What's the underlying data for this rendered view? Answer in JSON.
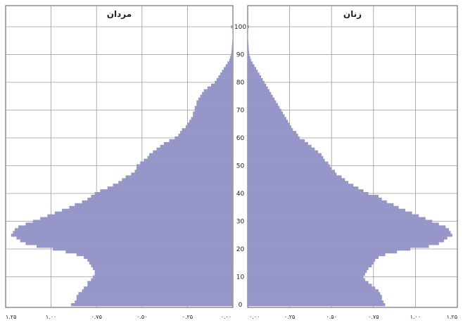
{
  "chart_data": {
    "type": "bar",
    "orientation": "horizontal",
    "subtype": "population-pyramid",
    "panels": [
      {
        "name": "مردان",
        "side": "left"
      },
      {
        "name": "زنان",
        "side": "right"
      }
    ],
    "age_min": 0,
    "age_max": 100,
    "age_ticks": [
      "0",
      "10",
      "20",
      "30",
      "40",
      "50",
      "60",
      "70",
      "80",
      "90",
      "100"
    ],
    "x_ticks": [
      0,
      0.25,
      0.5,
      0.75,
      1.0,
      1.25
    ],
    "x_tick_labels": [
      "۰.۰۰",
      "۰.۲۵",
      "۰.۵۰",
      "۰.۷۵",
      "۱.۰۰",
      "۱.۲۵"
    ],
    "xlim": [
      0,
      1.25
    ],
    "grid": true,
    "bar_color": "#9696c8",
    "series": [
      {
        "name": "مردان",
        "values": [
          0.89,
          0.87,
          0.86,
          0.86,
          0.85,
          0.83,
          0.82,
          0.8,
          0.8,
          0.78,
          0.77,
          0.76,
          0.76,
          0.77,
          0.78,
          0.79,
          0.8,
          0.82,
          0.86,
          0.92,
          0.99,
          1.08,
          1.14,
          1.17,
          1.19,
          1.22,
          1.21,
          1.2,
          1.18,
          1.14,
          1.1,
          1.06,
          1.02,
          0.98,
          0.94,
          0.9,
          0.87,
          0.83,
          0.8,
          0.78,
          0.76,
          0.73,
          0.69,
          0.66,
          0.63,
          0.61,
          0.59,
          0.56,
          0.54,
          0.53,
          0.53,
          0.51,
          0.49,
          0.47,
          0.46,
          0.44,
          0.42,
          0.4,
          0.38,
          0.35,
          0.32,
          0.3,
          0.29,
          0.28,
          0.26,
          0.25,
          0.24,
          0.23,
          0.22,
          0.22,
          0.21,
          0.21,
          0.2,
          0.2,
          0.19,
          0.18,
          0.17,
          0.16,
          0.14,
          0.12,
          0.1,
          0.09,
          0.08,
          0.07,
          0.06,
          0.05,
          0.04,
          0.03,
          0.02,
          0.015,
          0.01,
          0.008,
          0.006,
          0.005,
          0.004,
          0.003,
          0.002,
          0.002,
          0.001,
          0.001,
          0.01
        ]
      },
      {
        "name": "زنان",
        "values": [
          0.82,
          0.81,
          0.8,
          0.8,
          0.79,
          0.78,
          0.76,
          0.74,
          0.72,
          0.7,
          0.69,
          0.7,
          0.71,
          0.72,
          0.74,
          0.75,
          0.76,
          0.78,
          0.82,
          0.89,
          0.97,
          1.08,
          1.14,
          1.17,
          1.19,
          1.22,
          1.21,
          1.2,
          1.18,
          1.14,
          1.1,
          1.06,
          1.02,
          0.98,
          0.94,
          0.9,
          0.87,
          0.83,
          0.8,
          0.78,
          0.72,
          0.69,
          0.66,
          0.63,
          0.6,
          0.58,
          0.56,
          0.53,
          0.52,
          0.5,
          0.49,
          0.48,
          0.46,
          0.45,
          0.44,
          0.42,
          0.4,
          0.38,
          0.36,
          0.34,
          0.31,
          0.3,
          0.29,
          0.27,
          0.26,
          0.25,
          0.24,
          0.23,
          0.22,
          0.21,
          0.2,
          0.19,
          0.18,
          0.17,
          0.16,
          0.15,
          0.14,
          0.13,
          0.12,
          0.11,
          0.1,
          0.09,
          0.08,
          0.07,
          0.06,
          0.05,
          0.04,
          0.03,
          0.02,
          0.015,
          0.01,
          0.008,
          0.006,
          0.005,
          0.004,
          0.003,
          0.002,
          0.002,
          0.001,
          0.001,
          0.008
        ]
      }
    ]
  }
}
